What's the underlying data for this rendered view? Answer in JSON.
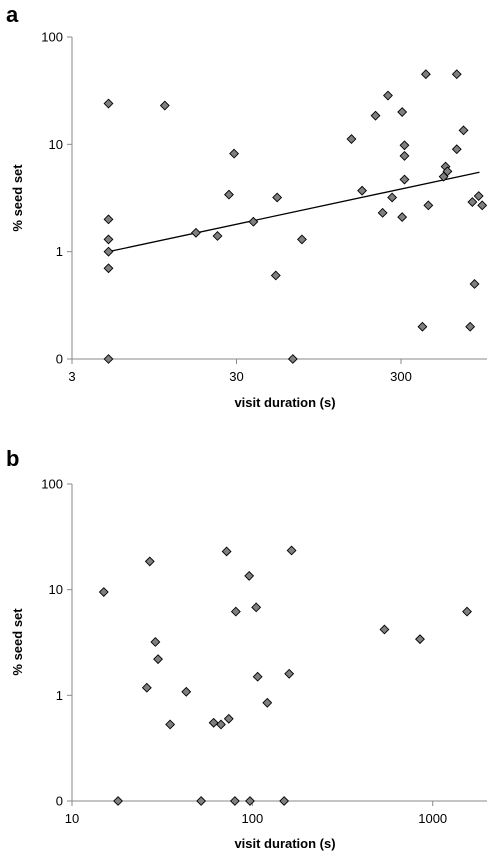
{
  "chart_data": [
    {
      "panel": "a",
      "type": "scatter",
      "xlabel": "visit duration (s)",
      "ylabel": "% seed set",
      "x_scale": "log",
      "y_scale": "log",
      "xlim": [
        3,
        1000
      ],
      "ylim": [
        0.1,
        100
      ],
      "x_ticks": [
        3,
        30,
        300
      ],
      "y_ticks": [
        0.1,
        1,
        10,
        100
      ],
      "y_tick_labels": [
        "0",
        "1",
        "10",
        "100"
      ],
      "trendline": {
        "x": [
          5,
          900
        ],
        "y": [
          1.0,
          5.5
        ]
      },
      "points": [
        {
          "x": 5,
          "y": 24
        },
        {
          "x": 5,
          "y": 2.0
        },
        {
          "x": 5,
          "y": 1.3
        },
        {
          "x": 5,
          "y": 1.0
        },
        {
          "x": 5,
          "y": 0.7
        },
        {
          "x": 5,
          "y": 0.1
        },
        {
          "x": 11,
          "y": 23
        },
        {
          "x": 17,
          "y": 1.5
        },
        {
          "x": 23,
          "y": 1.4
        },
        {
          "x": 27,
          "y": 3.4
        },
        {
          "x": 29,
          "y": 8.2
        },
        {
          "x": 38,
          "y": 1.9
        },
        {
          "x": 52,
          "y": 0.6
        },
        {
          "x": 53,
          "y": 3.2
        },
        {
          "x": 66,
          "y": 0.1
        },
        {
          "x": 75,
          "y": 1.3
        },
        {
          "x": 150,
          "y": 11.2
        },
        {
          "x": 174,
          "y": 3.7
        },
        {
          "x": 210,
          "y": 18.5
        },
        {
          "x": 232,
          "y": 2.3
        },
        {
          "x": 250,
          "y": 28.5
        },
        {
          "x": 265,
          "y": 3.2
        },
        {
          "x": 305,
          "y": 20
        },
        {
          "x": 305,
          "y": 2.1
        },
        {
          "x": 315,
          "y": 9.8
        },
        {
          "x": 315,
          "y": 7.8
        },
        {
          "x": 315,
          "y": 4.7
        },
        {
          "x": 405,
          "y": 0.2
        },
        {
          "x": 425,
          "y": 45
        },
        {
          "x": 440,
          "y": 2.7
        },
        {
          "x": 545,
          "y": 5.0
        },
        {
          "x": 560,
          "y": 6.2
        },
        {
          "x": 575,
          "y": 5.6
        },
        {
          "x": 655,
          "y": 45
        },
        {
          "x": 655,
          "y": 9.0
        },
        {
          "x": 720,
          "y": 13.5
        },
        {
          "x": 790,
          "y": 0.2
        },
        {
          "x": 815,
          "y": 2.9
        },
        {
          "x": 840,
          "y": 0.5
        },
        {
          "x": 890,
          "y": 3.3
        },
        {
          "x": 935,
          "y": 2.7
        }
      ]
    },
    {
      "panel": "b",
      "type": "scatter",
      "xlabel": "visit duration (s)",
      "ylabel": "% seed set",
      "x_scale": "log",
      "y_scale": "log",
      "xlim": [
        10,
        2000
      ],
      "ylim": [
        0.1,
        100
      ],
      "x_ticks": [
        10,
        100,
        1000
      ],
      "y_ticks": [
        0.1,
        1,
        10,
        100
      ],
      "y_tick_labels": [
        "0",
        "1",
        "10",
        "100"
      ],
      "points": [
        {
          "x": 15,
          "y": 9.5
        },
        {
          "x": 18,
          "y": 0.1
        },
        {
          "x": 26,
          "y": 1.18
        },
        {
          "x": 27,
          "y": 18.5
        },
        {
          "x": 29,
          "y": 3.2
        },
        {
          "x": 30,
          "y": 2.2
        },
        {
          "x": 35,
          "y": 0.53
        },
        {
          "x": 43,
          "y": 1.08
        },
        {
          "x": 52,
          "y": 0.1
        },
        {
          "x": 61,
          "y": 0.55
        },
        {
          "x": 67,
          "y": 0.53
        },
        {
          "x": 72,
          "y": 23
        },
        {
          "x": 74,
          "y": 0.6
        },
        {
          "x": 80,
          "y": 0.1
        },
        {
          "x": 81,
          "y": 6.2
        },
        {
          "x": 96,
          "y": 13.5
        },
        {
          "x": 97,
          "y": 0.1
        },
        {
          "x": 105,
          "y": 6.8
        },
        {
          "x": 107,
          "y": 1.5
        },
        {
          "x": 121,
          "y": 0.85
        },
        {
          "x": 150,
          "y": 0.1
        },
        {
          "x": 160,
          "y": 1.6
        },
        {
          "x": 165,
          "y": 23.5
        },
        {
          "x": 540,
          "y": 4.2
        },
        {
          "x": 850,
          "y": 3.4
        },
        {
          "x": 1550,
          "y": 6.2
        }
      ]
    }
  ]
}
